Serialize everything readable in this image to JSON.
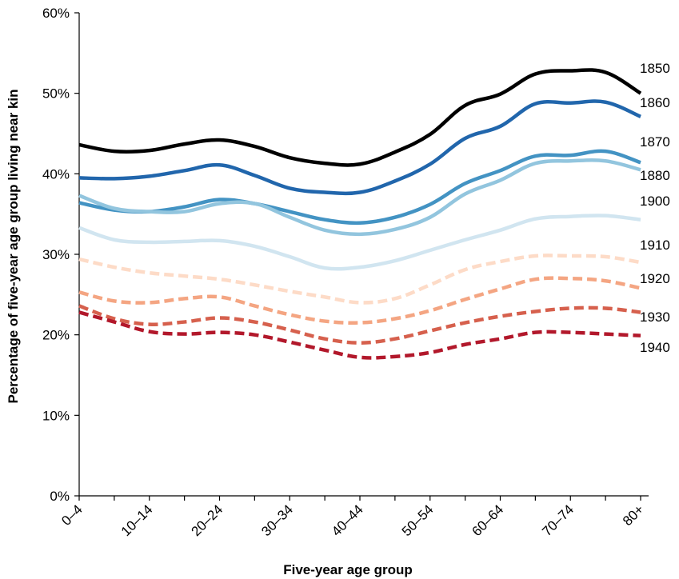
{
  "chart_data": {
    "type": "line",
    "title": "",
    "xlabel": "Five-year age group",
    "ylabel": "Percentage of five-year age group living near kin",
    "ylim": [
      0,
      60
    ],
    "yticks": [
      0,
      10,
      20,
      30,
      40,
      50,
      60
    ],
    "ytick_labels": [
      "0%",
      "10%",
      "20%",
      "30%",
      "40%",
      "50%",
      "60%"
    ],
    "grid": false,
    "legend": "direct labels at right end of lines",
    "categories": [
      "0–4",
      "5–9",
      "10–14",
      "15–19",
      "20–24",
      "25–29",
      "30–34",
      "35–39",
      "40–44",
      "45–49",
      "50–54",
      "55–59",
      "60–64",
      "65–69",
      "70–74",
      "75–79",
      "80+"
    ],
    "xtick_labels": [
      "0–4",
      "",
      "10–14",
      "",
      "20–24",
      "",
      "30–34",
      "",
      "40–44",
      "",
      "50–54",
      "",
      "60–64",
      "",
      "70–74",
      "",
      "80+"
    ],
    "series": [
      {
        "name": "1850",
        "color": "#000000",
        "dash": false,
        "values": [
          43.6,
          42.8,
          42.9,
          43.7,
          44.2,
          43.4,
          42.0,
          41.3,
          41.2,
          42.7,
          44.9,
          48.5,
          49.9,
          52.4,
          52.8,
          52.6,
          50.0
        ]
      },
      {
        "name": "1860",
        "color": "#2166ac",
        "dash": false,
        "values": [
          39.5,
          39.4,
          39.7,
          40.4,
          41.1,
          39.8,
          38.2,
          37.7,
          37.7,
          39.1,
          41.2,
          44.4,
          45.9,
          48.7,
          48.8,
          48.9,
          47.1
        ]
      },
      {
        "name": "1870",
        "color": "#4393c3",
        "dash": false,
        "values": [
          36.4,
          35.5,
          35.3,
          35.9,
          36.8,
          36.3,
          35.3,
          34.3,
          33.9,
          34.6,
          36.2,
          38.8,
          40.4,
          42.2,
          42.3,
          42.8,
          41.4
        ]
      },
      {
        "name": "1880",
        "color": "#92c5de",
        "dash": false,
        "values": [
          37.3,
          35.7,
          35.3,
          35.3,
          36.3,
          36.3,
          34.6,
          33.0,
          32.5,
          33.1,
          34.6,
          37.5,
          39.2,
          41.3,
          41.6,
          41.6,
          40.5
        ]
      },
      {
        "name": "1900",
        "color": "#d1e5f0",
        "dash": false,
        "values": [
          33.3,
          31.8,
          31.5,
          31.6,
          31.7,
          31.0,
          29.7,
          28.3,
          28.4,
          29.2,
          30.5,
          31.8,
          33.0,
          34.4,
          34.7,
          34.8,
          34.3
        ]
      },
      {
        "name": "1910",
        "color": "#fddbc7",
        "dash": true,
        "values": [
          29.4,
          28.4,
          27.7,
          27.3,
          26.9,
          26.2,
          25.4,
          24.7,
          24.0,
          24.5,
          26.2,
          28.1,
          29.1,
          29.8,
          29.8,
          29.7,
          29.0
        ]
      },
      {
        "name": "1920",
        "color": "#f4a582",
        "dash": true,
        "values": [
          25.3,
          24.2,
          24.0,
          24.5,
          24.7,
          23.6,
          22.5,
          21.7,
          21.5,
          22.0,
          23.0,
          24.4,
          25.7,
          26.9,
          27.0,
          26.7,
          25.8
        ]
      },
      {
        "name": "1930",
        "color": "#d6604d",
        "dash": true,
        "values": [
          23.6,
          22.0,
          21.3,
          21.6,
          22.1,
          21.6,
          20.6,
          19.5,
          19.0,
          19.5,
          20.5,
          21.5,
          22.3,
          22.9,
          23.3,
          23.3,
          22.8
        ]
      },
      {
        "name": "1940",
        "color": "#b2182b",
        "dash": true,
        "values": [
          22.8,
          21.6,
          20.4,
          20.1,
          20.3,
          20.0,
          19.1,
          18.1,
          17.2,
          17.3,
          17.8,
          18.8,
          19.5,
          20.3,
          20.3,
          20.1,
          19.9
        ]
      }
    ]
  }
}
